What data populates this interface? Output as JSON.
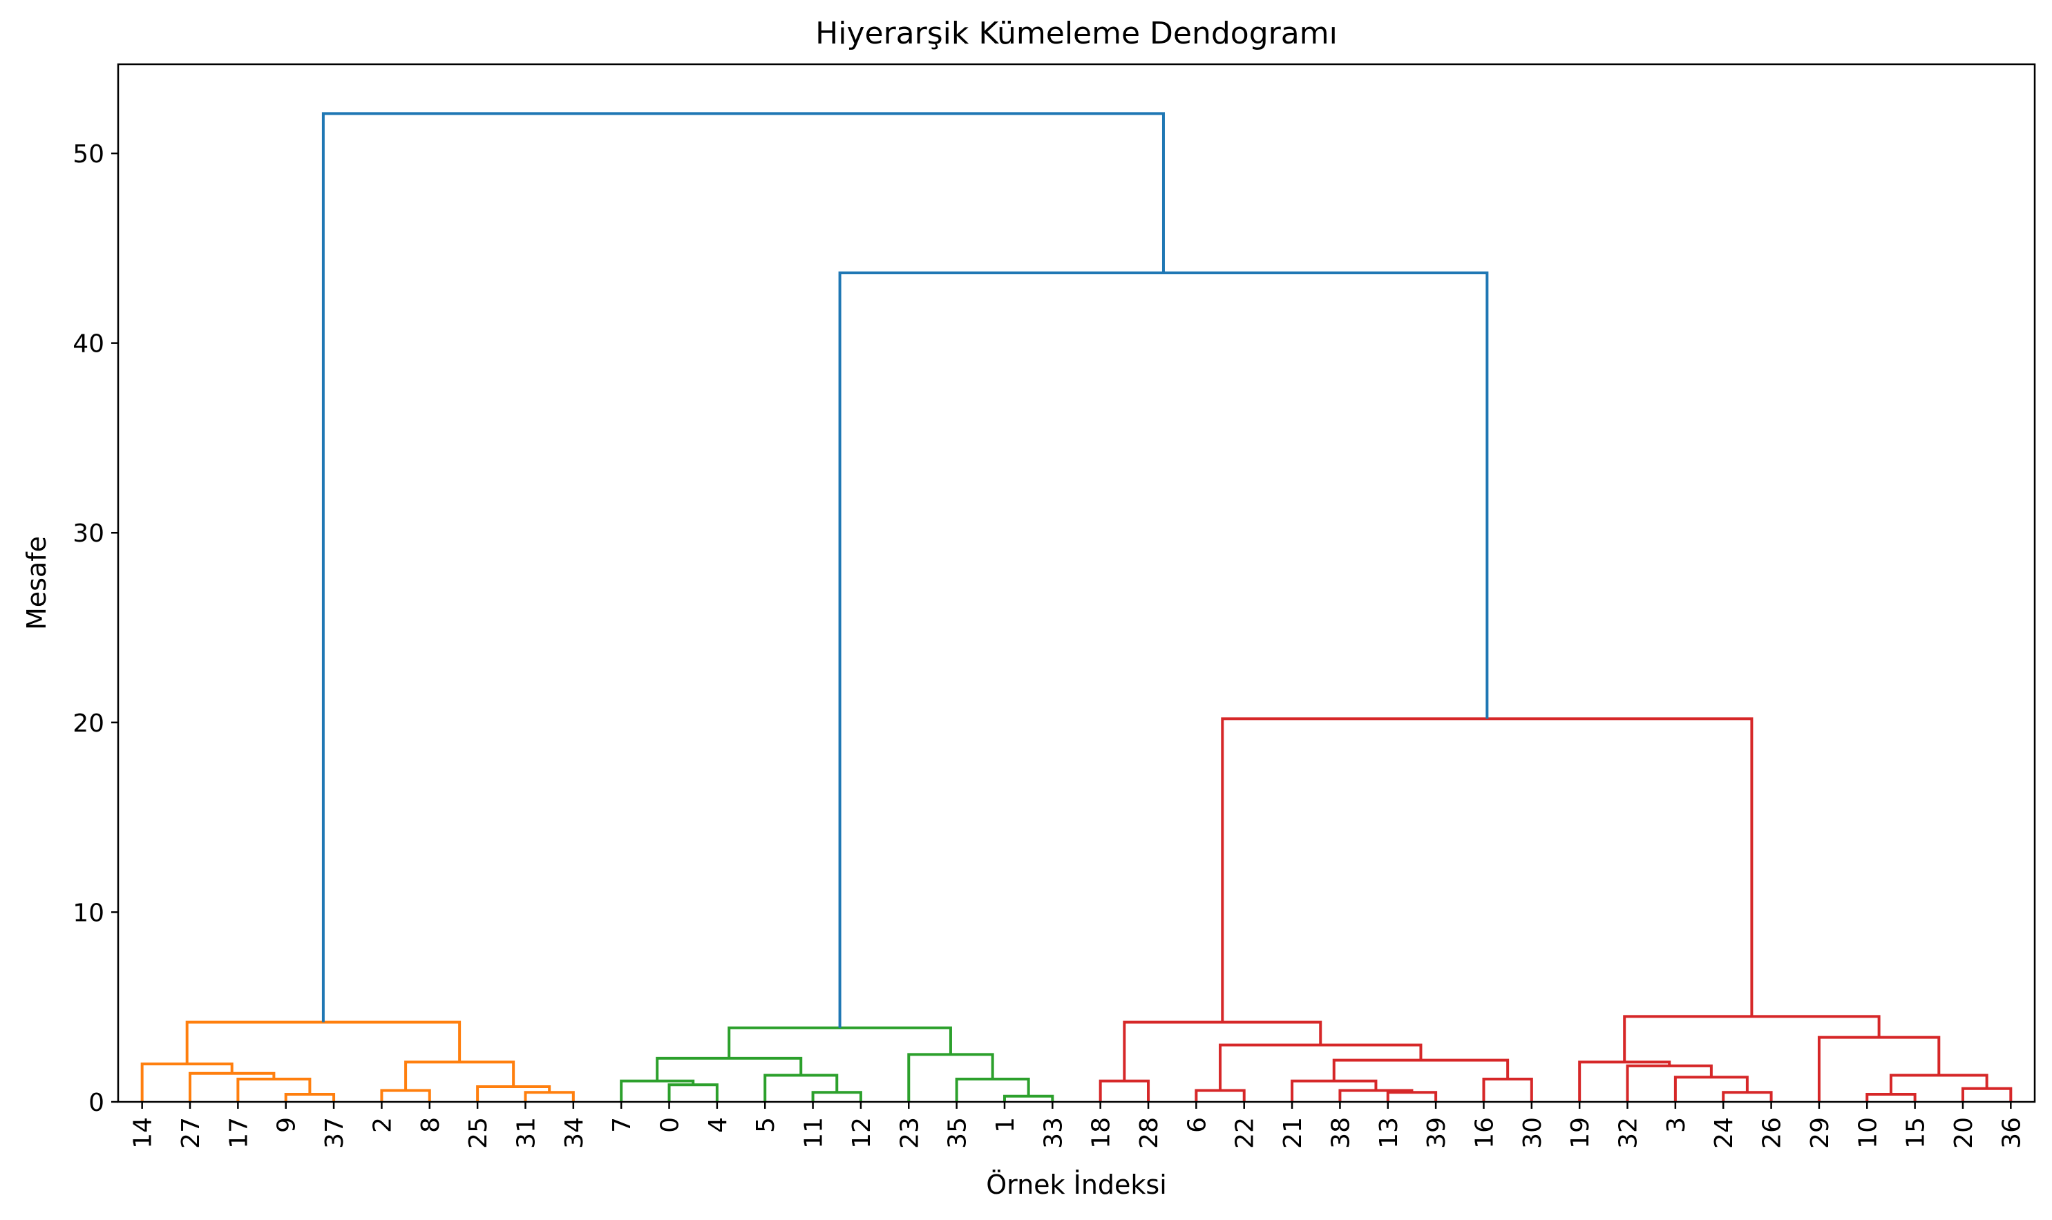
{
  "chart_data": {
    "type": "dendrogram",
    "title": "Hiyerarşik Kümeleme Dendogramı",
    "xlabel": "Örnek İndeksi",
    "ylabel": "Mesafe",
    "ylim": [
      0,
      54.7
    ],
    "yticks": [
      0,
      10,
      20,
      30,
      40,
      50
    ],
    "grid": false,
    "leaf_order": [
      14,
      27,
      17,
      9,
      37,
      2,
      8,
      25,
      31,
      34,
      7,
      0,
      4,
      5,
      11,
      12,
      23,
      35,
      1,
      33,
      18,
      28,
      6,
      22,
      21,
      38,
      13,
      39,
      16,
      30,
      19,
      32,
      3,
      24,
      26,
      29,
      10,
      15,
      20,
      36
    ],
    "colors": {
      "above_threshold": "#1f77b4",
      "cluster_1": "#ff7f0e",
      "cluster_2": "#2ca02c",
      "cluster_3": "#d62728"
    },
    "links": [
      {
        "a": [
          "leaf",
          3
        ],
        "b": [
          "leaf",
          4
        ],
        "height": 0.4,
        "color": "cluster_1"
      },
      {
        "a": [
          "leaf",
          2
        ],
        "b": [
          "link",
          0
        ],
        "height": 1.2,
        "color": "cluster_1"
      },
      {
        "a": [
          "leaf",
          1
        ],
        "b": [
          "link",
          1
        ],
        "height": 1.5,
        "color": "cluster_1"
      },
      {
        "a": [
          "leaf",
          0
        ],
        "b": [
          "link",
          2
        ],
        "height": 2.0,
        "color": "cluster_1"
      },
      {
        "a": [
          "leaf",
          5
        ],
        "b": [
          "leaf",
          6
        ],
        "height": 0.6,
        "color": "cluster_1"
      },
      {
        "a": [
          "leaf",
          8
        ],
        "b": [
          "leaf",
          9
        ],
        "height": 0.5,
        "color": "cluster_1"
      },
      {
        "a": [
          "leaf",
          7
        ],
        "b": [
          "link",
          5
        ],
        "height": 0.8,
        "color": "cluster_1"
      },
      {
        "a": [
          "link",
          4
        ],
        "b": [
          "link",
          6
        ],
        "height": 2.1,
        "color": "cluster_1"
      },
      {
        "a": [
          "link",
          3
        ],
        "b": [
          "link",
          7
        ],
        "height": 4.2,
        "color": "cluster_1"
      },
      {
        "a": [
          "leaf",
          11
        ],
        "b": [
          "leaf",
          12
        ],
        "height": 0.9,
        "color": "cluster_2"
      },
      {
        "a": [
          "leaf",
          10
        ],
        "b": [
          "link",
          9
        ],
        "height": 1.1,
        "color": "cluster_2"
      },
      {
        "a": [
          "leaf",
          14
        ],
        "b": [
          "leaf",
          15
        ],
        "height": 0.5,
        "color": "cluster_2"
      },
      {
        "a": [
          "leaf",
          13
        ],
        "b": [
          "link",
          11
        ],
        "height": 1.4,
        "color": "cluster_2"
      },
      {
        "a": [
          "link",
          10
        ],
        "b": [
          "link",
          12
        ],
        "height": 2.3,
        "color": "cluster_2"
      },
      {
        "a": [
          "leaf",
          18
        ],
        "b": [
          "leaf",
          19
        ],
        "height": 0.3,
        "color": "cluster_2"
      },
      {
        "a": [
          "leaf",
          17
        ],
        "b": [
          "link",
          14
        ],
        "height": 1.2,
        "color": "cluster_2"
      },
      {
        "a": [
          "leaf",
          16
        ],
        "b": [
          "link",
          15
        ],
        "height": 2.5,
        "color": "cluster_2"
      },
      {
        "a": [
          "link",
          13
        ],
        "b": [
          "link",
          16
        ],
        "height": 3.9,
        "color": "cluster_2"
      },
      {
        "a": [
          "leaf",
          20
        ],
        "b": [
          "leaf",
          21
        ],
        "height": 1.1,
        "color": "cluster_3"
      },
      {
        "a": [
          "leaf",
          22
        ],
        "b": [
          "leaf",
          23
        ],
        "height": 0.6,
        "color": "cluster_3"
      },
      {
        "a": [
          "leaf",
          26
        ],
        "b": [
          "leaf",
          27
        ],
        "height": 0.5,
        "color": "cluster_3"
      },
      {
        "a": [
          "leaf",
          25
        ],
        "b": [
          "link",
          20
        ],
        "height": 0.6,
        "color": "cluster_3"
      },
      {
        "a": [
          "leaf",
          24
        ],
        "b": [
          "link",
          21
        ],
        "height": 1.1,
        "color": "cluster_3"
      },
      {
        "a": [
          "leaf",
          28
        ],
        "b": [
          "leaf",
          29
        ],
        "height": 1.2,
        "color": "cluster_3"
      },
      {
        "a": [
          "link",
          22
        ],
        "b": [
          "link",
          23
        ],
        "height": 2.2,
        "color": "cluster_3"
      },
      {
        "a": [
          "link",
          19
        ],
        "b": [
          "link",
          24
        ],
        "height": 3.0,
        "color": "cluster_3"
      },
      {
        "a": [
          "link",
          18
        ],
        "b": [
          "link",
          25
        ],
        "height": 4.2,
        "color": "cluster_3"
      },
      {
        "a": [
          "leaf",
          33
        ],
        "b": [
          "leaf",
          34
        ],
        "height": 0.5,
        "color": "cluster_3"
      },
      {
        "a": [
          "leaf",
          32
        ],
        "b": [
          "link",
          27
        ],
        "height": 1.3,
        "color": "cluster_3"
      },
      {
        "a": [
          "leaf",
          31
        ],
        "b": [
          "link",
          28
        ],
        "height": 1.9,
        "color": "cluster_3"
      },
      {
        "a": [
          "leaf",
          30
        ],
        "b": [
          "link",
          29
        ],
        "height": 2.1,
        "color": "cluster_3"
      },
      {
        "a": [
          "leaf",
          36
        ],
        "b": [
          "leaf",
          37
        ],
        "height": 0.4,
        "color": "cluster_3"
      },
      {
        "a": [
          "leaf",
          38
        ],
        "b": [
          "leaf",
          39
        ],
        "height": 0.7,
        "color": "cluster_3"
      },
      {
        "a": [
          "link",
          31
        ],
        "b": [
          "link",
          32
        ],
        "height": 1.4,
        "color": "cluster_3"
      },
      {
        "a": [
          "leaf",
          35
        ],
        "b": [
          "link",
          33
        ],
        "height": 3.4,
        "color": "cluster_3"
      },
      {
        "a": [
          "link",
          30
        ],
        "b": [
          "link",
          34
        ],
        "height": 4.5,
        "color": "cluster_3"
      },
      {
        "a": [
          "link",
          26
        ],
        "b": [
          "link",
          35
        ],
        "height": 20.2,
        "color": "cluster_3"
      },
      {
        "a": [
          "link",
          17
        ],
        "b": [
          "link",
          36
        ],
        "height": 43.7,
        "color": "above_threshold"
      },
      {
        "a": [
          "link",
          8
        ],
        "b": [
          "link",
          37
        ],
        "height": 52.1,
        "color": "above_threshold"
      }
    ]
  }
}
